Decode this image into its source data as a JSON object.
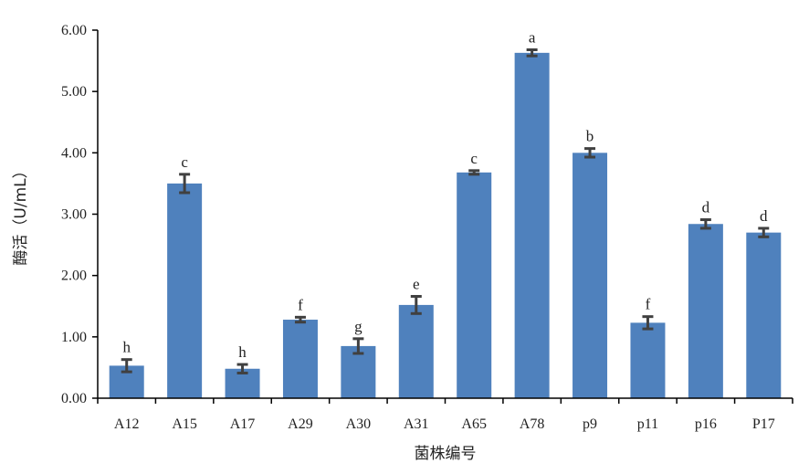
{
  "chart_data": {
    "type": "bar",
    "xlabel": "菌株编号",
    "ylabel": "酶活（U/mL）",
    "ylim": [
      0,
      6
    ],
    "yticks": [
      "0.00",
      "1.00",
      "2.00",
      "3.00",
      "4.00",
      "5.00",
      "6.00"
    ],
    "grid": false,
    "legend": "none",
    "bar_color": "#4F81BD",
    "errorbar_color": "#404040",
    "categories": [
      "A12",
      "A15",
      "A17",
      "A29",
      "A30",
      "A31",
      "A65",
      "A78",
      "p9",
      "p11",
      "p16",
      "P17"
    ],
    "values": [
      0.53,
      3.5,
      0.48,
      1.28,
      0.85,
      1.52,
      3.68,
      5.63,
      4.0,
      1.23,
      2.84,
      2.7
    ],
    "errors": [
      0.1,
      0.15,
      0.07,
      0.04,
      0.12,
      0.14,
      0.03,
      0.05,
      0.07,
      0.1,
      0.07,
      0.07
    ],
    "significance": [
      "h",
      "c",
      "h",
      "f",
      "g",
      "e",
      "c",
      "a",
      "b",
      "f",
      "d",
      "d"
    ]
  }
}
